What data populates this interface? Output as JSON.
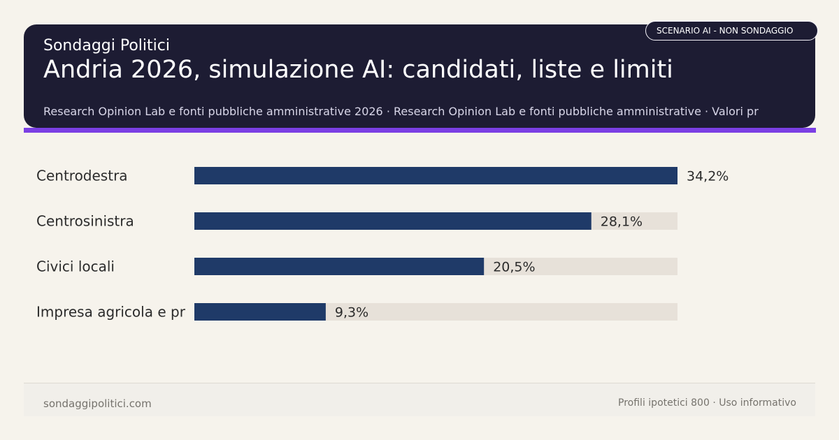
{
  "header": {
    "brand": "Sondaggi Politici",
    "title": "Andria 2026, simulazione AI: candidati, liste e limiti",
    "subtitle": "Research Opinion Lab e fonti pubbliche amministrative 2026 · Research Opinion Lab e fonti pubbliche amministrative · Valori pr",
    "badge": "SCENARIO AI - NON SONDAGGIO"
  },
  "chart_data": {
    "type": "bar",
    "orientation": "horizontal",
    "categories": [
      "Centrodestra",
      "Centrosinistra",
      "Civici locali",
      "Impresa agricola e pr"
    ],
    "values": [
      34.2,
      28.1,
      20.5,
      9.3
    ],
    "value_labels": [
      "34,2%",
      "28,1%",
      "20,5%",
      "9,3%"
    ],
    "xlim": [
      0,
      34.2
    ],
    "title": "",
    "xlabel": "",
    "ylabel": "",
    "grid": false,
    "colors": {
      "bar": "#1f3a68",
      "track": "#e7e1d9",
      "label": "#2b2b2b"
    }
  },
  "footer": {
    "left": "sondaggipolitici.com",
    "right": "Profili ipotetici 800 · Uso informativo"
  },
  "colors": {
    "background": "#f6f3ec",
    "header_bg": "#1d1c33",
    "accent": "#7b3fe4"
  }
}
